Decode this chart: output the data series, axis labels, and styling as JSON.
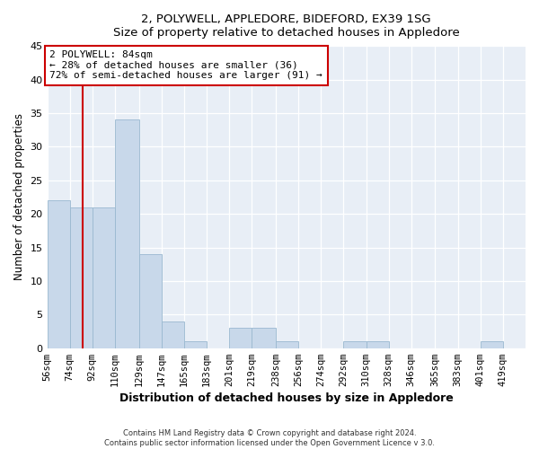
{
  "title": "2, POLYWELL, APPLEDORE, BIDEFORD, EX39 1SG",
  "subtitle": "Size of property relative to detached houses in Appledore",
  "xlabel": "Distribution of detached houses by size in Appledore",
  "ylabel": "Number of detached properties",
  "bar_labels": [
    "56sqm",
    "74sqm",
    "92sqm",
    "110sqm",
    "129sqm",
    "147sqm",
    "165sqm",
    "183sqm",
    "201sqm",
    "219sqm",
    "238sqm",
    "256sqm",
    "274sqm",
    "292sqm",
    "310sqm",
    "328sqm",
    "346sqm",
    "365sqm",
    "383sqm",
    "401sqm",
    "419sqm"
  ],
  "bar_values": [
    22,
    21,
    21,
    34,
    14,
    4,
    1,
    0,
    3,
    3,
    1,
    0,
    0,
    1,
    1,
    0,
    0,
    0,
    0,
    1,
    0
  ],
  "bar_color": "#c8d8ea",
  "bar_edge_color": "#9ab8d0",
  "property_line_x": 84,
  "bin_edges": [
    56,
    74,
    92,
    110,
    129,
    147,
    165,
    183,
    201,
    219,
    238,
    256,
    274,
    292,
    310,
    328,
    346,
    365,
    383,
    401,
    419,
    437
  ],
  "annotation_title": "2 POLYWELL: 84sqm",
  "annotation_line1": "← 28% of detached houses are smaller (36)",
  "annotation_line2": "72% of semi-detached houses are larger (91) →",
  "annotation_box_color": "#cc0000",
  "ylim": [
    0,
    45
  ],
  "yticks": [
    0,
    5,
    10,
    15,
    20,
    25,
    30,
    35,
    40,
    45
  ],
  "footer_line1": "Contains HM Land Registry data © Crown copyright and database right 2024.",
  "footer_line2": "Contains public sector information licensed under the Open Government Licence v 3.0.",
  "bg_color": "#ffffff",
  "plot_bg_color": "#e8eef6"
}
